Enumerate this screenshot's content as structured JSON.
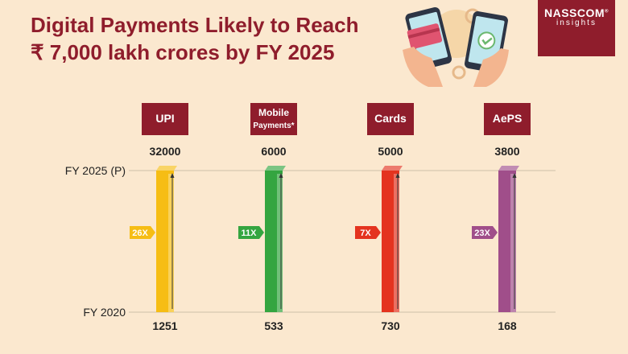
{
  "title_line1": "Digital Payments Likely to Reach",
  "title_line2": "₹ 7,000 lakh crores by FY 2025",
  "logo": {
    "name": "NASSCOM",
    "mark": "®",
    "sub": "insights"
  },
  "colors": {
    "brand": "#8f1d2c",
    "background": "#fbe8cf"
  },
  "chart_data": {
    "type": "bar",
    "row_labels": [
      "FY 2025 (P)",
      "FY 2020"
    ],
    "categories": [
      "UPI",
      "Mobile Payments*",
      "Cards",
      "AePS"
    ],
    "series": [
      {
        "values": [
          32000,
          6000,
          5000,
          3800
        ]
      },
      {
        "values": [
          1251,
          533,
          730,
          168
        ]
      }
    ],
    "growth": [
      "26X",
      "11X",
      "7X",
      "23X"
    ],
    "bar_colors": [
      "#f6bd14",
      "#34a540",
      "#e4331f",
      "#a04e8a"
    ],
    "grid": true
  }
}
